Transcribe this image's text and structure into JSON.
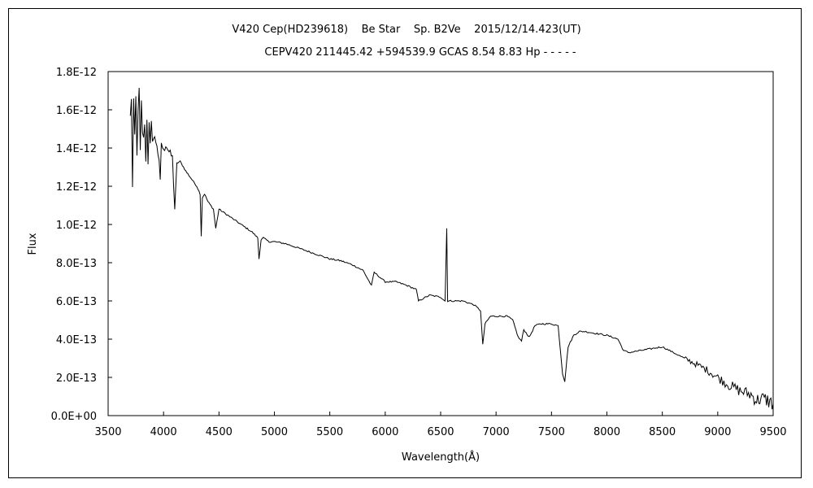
{
  "chart_data": {
    "type": "line",
    "title": "V420 Cep(HD239618)    Be Star    Sp. B2Ve    2015/12/14.423(UT)",
    "subtitle": "CEPV420 211445.42 +594539.9 GCAS 8.54 8.83 Hp - - - - -",
    "xlabel": "Wavelength(Å)",
    "ylabel": "Flux",
    "xlim": [
      3500,
      9500
    ],
    "ylim": [
      0,
      1.8e-12
    ],
    "x_ticks": [
      "3500",
      "4000",
      "4500",
      "5000",
      "5500",
      "6000",
      "6500",
      "7000",
      "7500",
      "8000",
      "8500",
      "9000",
      "9500"
    ],
    "y_ticks": [
      "0.0E+00",
      "2.0E-13",
      "4.0E-13",
      "6.0E-13",
      "8.0E-13",
      "1.0E-12",
      "1.2E-12",
      "1.4E-12",
      "1.6E-12",
      "1.8E-12"
    ],
    "grid": false,
    "series": [
      {
        "color": "#000000",
        "x": [
          3700,
          3710,
          3720,
          3730,
          3740,
          3750,
          3760,
          3770,
          3780,
          3790,
          3800,
          3810,
          3820,
          3830,
          3840,
          3850,
          3860,
          3870,
          3880,
          3890,
          3900,
          3920,
          3940,
          3960,
          3970,
          3980,
          4000,
          4020,
          4050,
          4080,
          4101,
          4120,
          4150,
          4180,
          4200,
          4250,
          4300,
          4330,
          4340,
          4350,
          4370,
          4400,
          4450,
          4471,
          4500,
          4600,
          4700,
          4800,
          4850,
          4861,
          4880,
          4900,
          4950,
          5000,
          5100,
          5200,
          5300,
          5400,
          5500,
          5600,
          5700,
          5800,
          5876,
          5900,
          6000,
          6100,
          6200,
          6280,
          6300,
          6400,
          6500,
          6540,
          6555,
          6563,
          6570,
          6590,
          6600,
          6700,
          6800,
          6860,
          6880,
          6900,
          6950,
          7000,
          7100,
          7150,
          7200,
          7230,
          7250,
          7300,
          7350,
          7400,
          7500,
          7560,
          7600,
          7620,
          7650,
          7700,
          7750,
          7800,
          7900,
          8000,
          8100,
          8150,
          8200,
          8300,
          8400,
          8500,
          8600,
          8700,
          8800,
          8900,
          9000,
          9100,
          9200,
          9300,
          9350,
          9400,
          9450,
          9500
        ],
        "y": [
          1.55e-12,
          1.68e-12,
          1.18e-12,
          1.6e-12,
          1.45e-12,
          1.65e-12,
          1.4e-12,
          1.55e-12,
          1.69e-12,
          1.35e-12,
          1.62e-12,
          1.5e-12,
          1.42e-12,
          1.56e-12,
          1.32e-12,
          1.58e-12,
          1.35e-12,
          1.5e-12,
          1.38e-12,
          1.5e-12,
          1.45e-12,
          1.45e-12,
          1.42e-12,
          1.32e-12,
          1.22e-12,
          1.43e-12,
          1.38e-12,
          1.42e-12,
          1.38e-12,
          1.35e-12,
          1.08e-12,
          1.32e-12,
          1.33e-12,
          1.3e-12,
          1.28e-12,
          1.24e-12,
          1.2e-12,
          1.16e-12,
          9.4e-13,
          1.14e-12,
          1.16e-12,
          1.12e-12,
          1.08e-12,
          9.8e-13,
          1.08e-12,
          1.04e-12,
          1e-12,
          9.6e-13,
          9.3e-13,
          8.2e-13,
          9.2e-13,
          9.3e-13,
          9.1e-13,
          9.1e-13,
          9e-13,
          8.8e-13,
          8.6e-13,
          8.4e-13,
          8.2e-13,
          8.1e-13,
          7.9e-13,
          7.6e-13,
          6.8e-13,
          7.5e-13,
          7e-13,
          7e-13,
          6.8e-13,
          6.6e-13,
          6e-13,
          6.3e-13,
          6.2e-13,
          6e-13,
          9.8e-13,
          6e-13,
          6e-13,
          6e-13,
          6e-13,
          6e-13,
          5.8e-13,
          5.5e-13,
          3.7e-13,
          4.8e-13,
          5.2e-13,
          5.2e-13,
          5.2e-13,
          5e-13,
          4.1e-13,
          3.9e-13,
          4.5e-13,
          4.1e-13,
          4.7e-13,
          4.8e-13,
          4.8e-13,
          4.7e-13,
          2.2e-13,
          1.8e-13,
          3.6e-13,
          4.2e-13,
          4.4e-13,
          4.4e-13,
          4.3e-13,
          4.2e-13,
          4e-13,
          3.4e-13,
          3.3e-13,
          3.4e-13,
          3.5e-13,
          3.6e-13,
          3.3e-13,
          3e-13,
          2.7e-13,
          2.4e-13,
          2e-13,
          1.6e-13,
          1.3e-13,
          1.1e-13,
          8e-14,
          9e-14,
          8e-14,
          6e-14
        ]
      }
    ]
  }
}
